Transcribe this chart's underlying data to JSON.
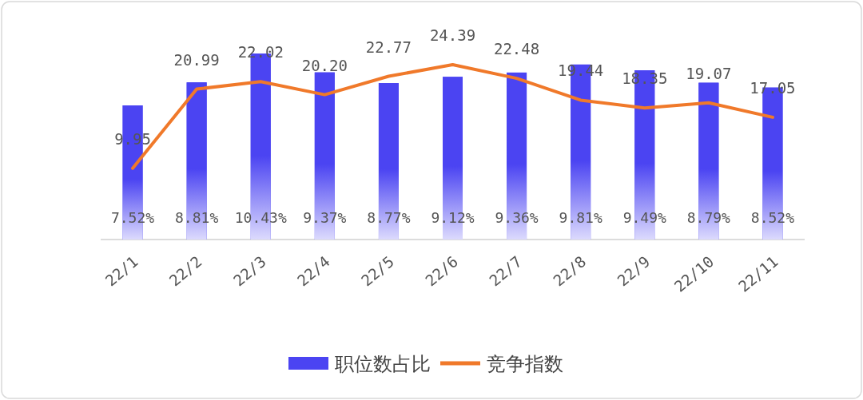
{
  "chart_data": {
    "type": "bar",
    "categories": [
      "22/1",
      "22/2",
      "22/3",
      "22/4",
      "22/5",
      "22/6",
      "22/7",
      "22/8",
      "22/9",
      "22/10",
      "22/11"
    ],
    "series": [
      {
        "name": "职位数占比",
        "color": "#4b44f2",
        "values": [
          7.52,
          8.81,
          10.43,
          9.37,
          8.77,
          9.12,
          9.36,
          9.81,
          9.49,
          8.79,
          8.52
        ],
        "value_labels": [
          "7.52%",
          "8.81%",
          "10.43%",
          "9.37%",
          "8.77%",
          "9.12%",
          "9.36%",
          "9.81%",
          "9.49%",
          "8.79%",
          "8.52%"
        ]
      },
      {
        "name": "竞争指数",
        "type": "line",
        "axis": "y2",
        "color": "#f0792a",
        "values": [
          9.95,
          20.99,
          22.02,
          20.2,
          22.77,
          24.39,
          22.48,
          19.44,
          18.35,
          19.07,
          17.05
        ],
        "value_labels": [
          "9.95",
          "20.99",
          "22.02",
          "20.20",
          "22.77",
          "24.39",
          "22.48",
          "19.44",
          "18.35",
          "19.07",
          "17.05"
        ]
      }
    ],
    "tick_labels": "x",
    "legend": "bottom"
  }
}
